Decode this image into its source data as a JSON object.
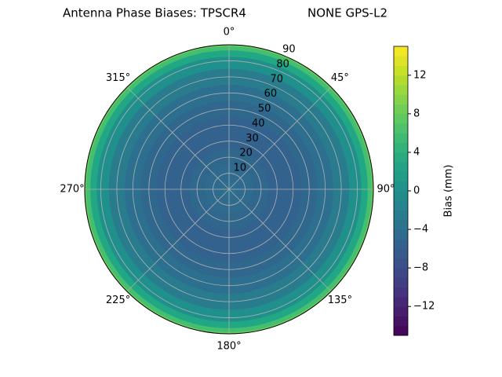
{
  "chart_data": {
    "type": "polar",
    "title": "Antenna Phase Biases: TPSCR4",
    "title_right": "NONE GPS-L2",
    "colormap": "viridis",
    "x": [
      0,
      10,
      20,
      30,
      40,
      50,
      60,
      70,
      80,
      85,
      88,
      90
    ],
    "values": [
      -4,
      -4.5,
      -5,
      -5.5,
      -5.5,
      -5,
      -4,
      -2.5,
      0,
      3,
      6,
      8
    ],
    "xlim": [
      0,
      90
    ],
    "xticks": [
      10,
      20,
      30,
      40,
      50,
      60,
      70,
      80,
      90
    ],
    "angle_ticks": [
      {
        "value": 0,
        "label": "0°"
      },
      {
        "value": 45,
        "label": "45°"
      },
      {
        "value": 90,
        "label": "90°"
      },
      {
        "value": 135,
        "label": "135°"
      },
      {
        "value": 180,
        "label": "180°"
      },
      {
        "value": 225,
        "label": "225°"
      },
      {
        "value": 270,
        "label": "270°"
      },
      {
        "value": 315,
        "label": "315°"
      }
    ],
    "grid": true,
    "colorbar_label": "Bias (mm)",
    "clim": [
      -15,
      15
    ],
    "cticks": [
      {
        "value": -12,
        "label": "−12"
      },
      {
        "value": -8,
        "label": "−8"
      },
      {
        "value": -4,
        "label": "−4"
      },
      0,
      4,
      8,
      12
    ]
  }
}
